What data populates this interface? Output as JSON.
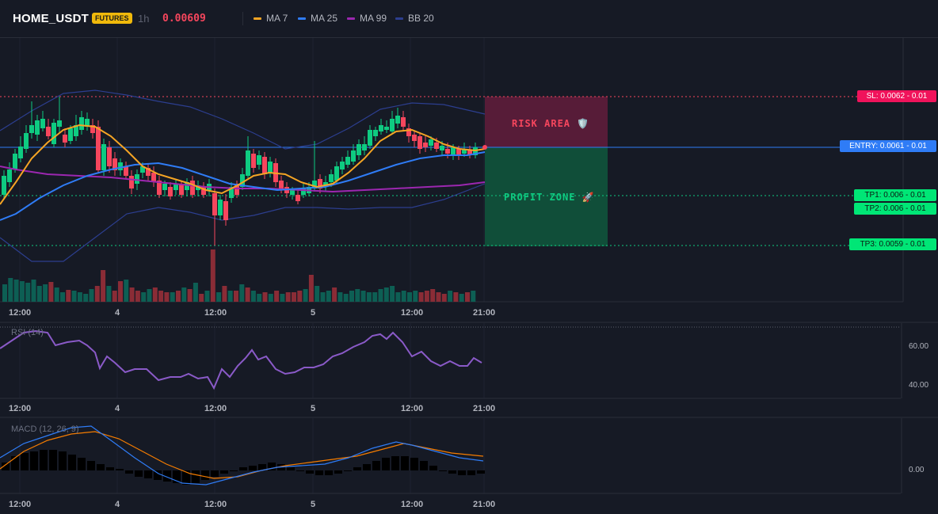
{
  "header": {
    "symbol": "HOME_USDT",
    "badge": "FUTURES",
    "timeframe": "1h",
    "price": "0.00609",
    "legend": [
      {
        "label": "MA 7",
        "color": "#f5a524"
      },
      {
        "label": "MA 25",
        "color": "#2f7cf6"
      },
      {
        "label": "MA 99",
        "color": "#9c27b0"
      },
      {
        "label": "BB 20",
        "color": "#2c3e8f"
      }
    ]
  },
  "levels": {
    "sl": "SL: 0.0062 - 0.01",
    "entry": "ENTRY: 0.0061 - 0.01",
    "tp1": "TP1: 0.006 - 0.01",
    "tp2": "TP2: 0.006 - 0.01",
    "tp3": "TP3: 0.0059 - 0.01"
  },
  "zones": {
    "risk": "RISK AREA 🛡️",
    "profit": "PROFIT ZONE 🚀"
  },
  "x_axis": [
    "12:00",
    "4",
    "12:00",
    "5",
    "12:00",
    "21:00"
  ],
  "rsi": {
    "title": "RSI (14)",
    "ticks": [
      "60.00",
      "40.00"
    ]
  },
  "macd": {
    "title": "MACD (12, 26, 9)",
    "ticks": [
      "0.00"
    ]
  },
  "colors": {
    "up": "#0ecb81",
    "down": "#f6465d",
    "bg": "#161a25"
  }
}
